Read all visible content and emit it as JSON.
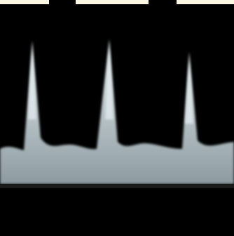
{
  "colors": {
    "background": "#000000",
    "top_bars": "#fdf7e6",
    "waveform_fill": "#c9d3d8",
    "waveform_highlight": "#e6eef1",
    "waveform_shadow": "#8d9ba1",
    "baseline_band": "#1a1a1a"
  },
  "content": {
    "subject": "spectral-doppler-waveform",
    "peak_count": 3
  }
}
